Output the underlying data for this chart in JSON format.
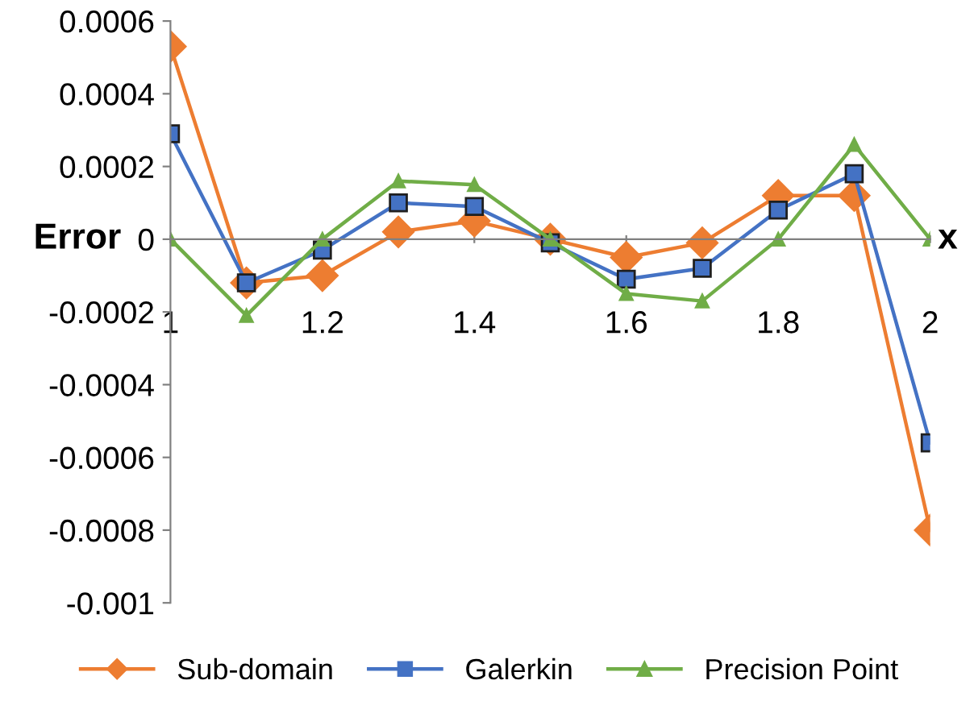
{
  "chart_data": {
    "type": "line",
    "xlabel": "x",
    "ylabel": "Error",
    "x": [
      1,
      1.1,
      1.2,
      1.3,
      1.4,
      1.5,
      1.6,
      1.7,
      1.8,
      1.9,
      2
    ],
    "xlim": [
      1,
      2
    ],
    "xticks": [
      1,
      1.2,
      1.4,
      1.6,
      1.8,
      2
    ],
    "ylim": [
      -0.001,
      0.0006
    ],
    "yticks": [
      -0.001,
      -0.0008,
      -0.0006,
      -0.0004,
      -0.0002,
      0,
      0.0002,
      0.0004,
      0.0006
    ],
    "grid": false,
    "legend": "bottom",
    "series": [
      {
        "name": "Sub-domain",
        "color": "#ed7d31",
        "marker": "diamond",
        "values": [
          0.00053,
          -0.00012,
          -0.0001,
          2e-05,
          5e-05,
          0,
          -5e-05,
          -1e-05,
          0.00012,
          0.00012,
          -0.0008
        ]
      },
      {
        "name": "Galerkin",
        "color": "#4472c4",
        "marker": "square",
        "values": [
          0.00029,
          -0.00012,
          -3e-05,
          0.0001,
          9e-05,
          -1e-05,
          -0.00011,
          -8e-05,
          8e-05,
          0.00018,
          -0.00056
        ]
      },
      {
        "name": "Precision Point",
        "color": "#70ad47",
        "marker": "triangle",
        "values": [
          0,
          -0.00021,
          0,
          0.00016,
          0.00015,
          0,
          -0.00015,
          -0.00017,
          0,
          0.00026,
          0
        ]
      }
    ]
  }
}
